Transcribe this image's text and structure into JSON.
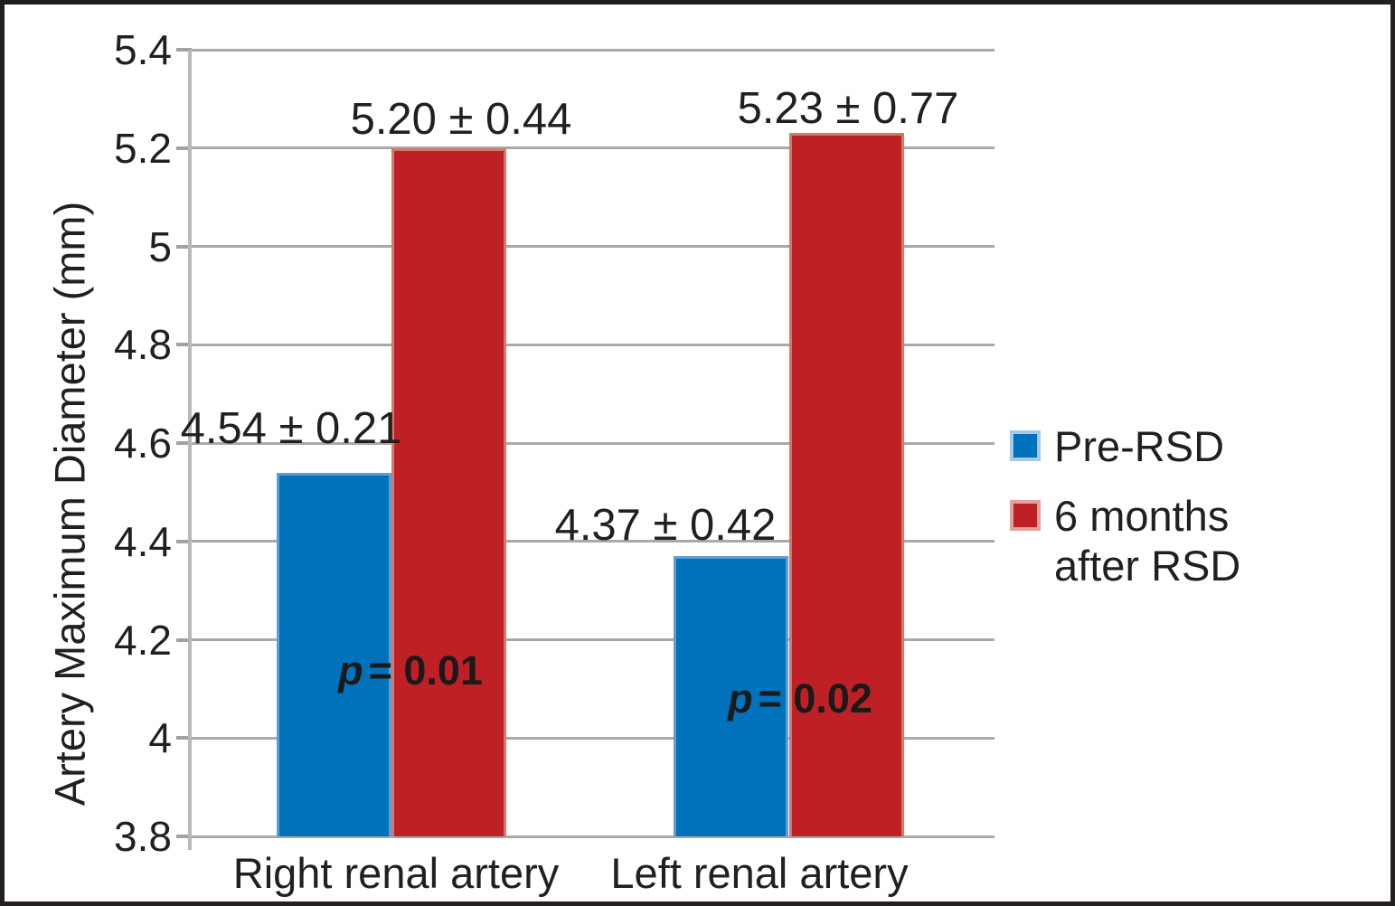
{
  "figure": {
    "y_axis": {
      "title": "Artery Maximum Diameter (mm)",
      "ticks": [
        {
          "label": "5.4",
          "value": 5.4
        },
        {
          "label": "5.2",
          "value": 5.2
        },
        {
          "label": "5",
          "value": 5.0
        },
        {
          "label": "4.8",
          "value": 4.8
        },
        {
          "label": "4.6",
          "value": 4.6
        },
        {
          "label": "4.4",
          "value": 4.4
        },
        {
          "label": "4.2",
          "value": 4.2
        },
        {
          "label": "4",
          "value": 4.0
        },
        {
          "label": "3.8",
          "value": 3.8
        }
      ]
    },
    "legend": {
      "items": [
        {
          "lines": [
            "Pre-RSD"
          ],
          "color": "#0072BC",
          "border": "#a9c7e6"
        },
        {
          "lines": [
            "6 months",
            "after RSD"
          ],
          "color": "#BE2026",
          "border": "#e0a29c"
        }
      ]
    },
    "colors": {
      "blue": "#0072BC",
      "blue_edge": "#5b9fd2",
      "red": "#BE2026",
      "red_edge": "#d3786a",
      "gridline": "#a7aaa9",
      "text": "#231f20"
    }
  },
  "chart_data": {
    "type": "bar",
    "categories": [
      "Right renal artery",
      "Left renal artery"
    ],
    "series": [
      {
        "name": "Pre-RSD",
        "color": "#0072BC",
        "values": [
          4.54,
          4.37
        ],
        "value_labels": [
          "4.54 ± 0.21",
          "4.37 ± 0.42"
        ]
      },
      {
        "name": "6 months after RSD",
        "color": "#BE2026",
        "values": [
          5.2,
          5.23
        ],
        "value_labels": [
          "5.20 ± 0.44",
          "5.23 ± 0.77"
        ]
      }
    ],
    "p_values": [
      "p = 0.01",
      "p = 0.02"
    ],
    "title": "",
    "xlabel": "",
    "ylabel": "Artery Maximum Diameter (mm)",
    "ylim": [
      3.8,
      5.4
    ],
    "ytick_step": 0.2,
    "grid": true,
    "legend_position": "right"
  }
}
